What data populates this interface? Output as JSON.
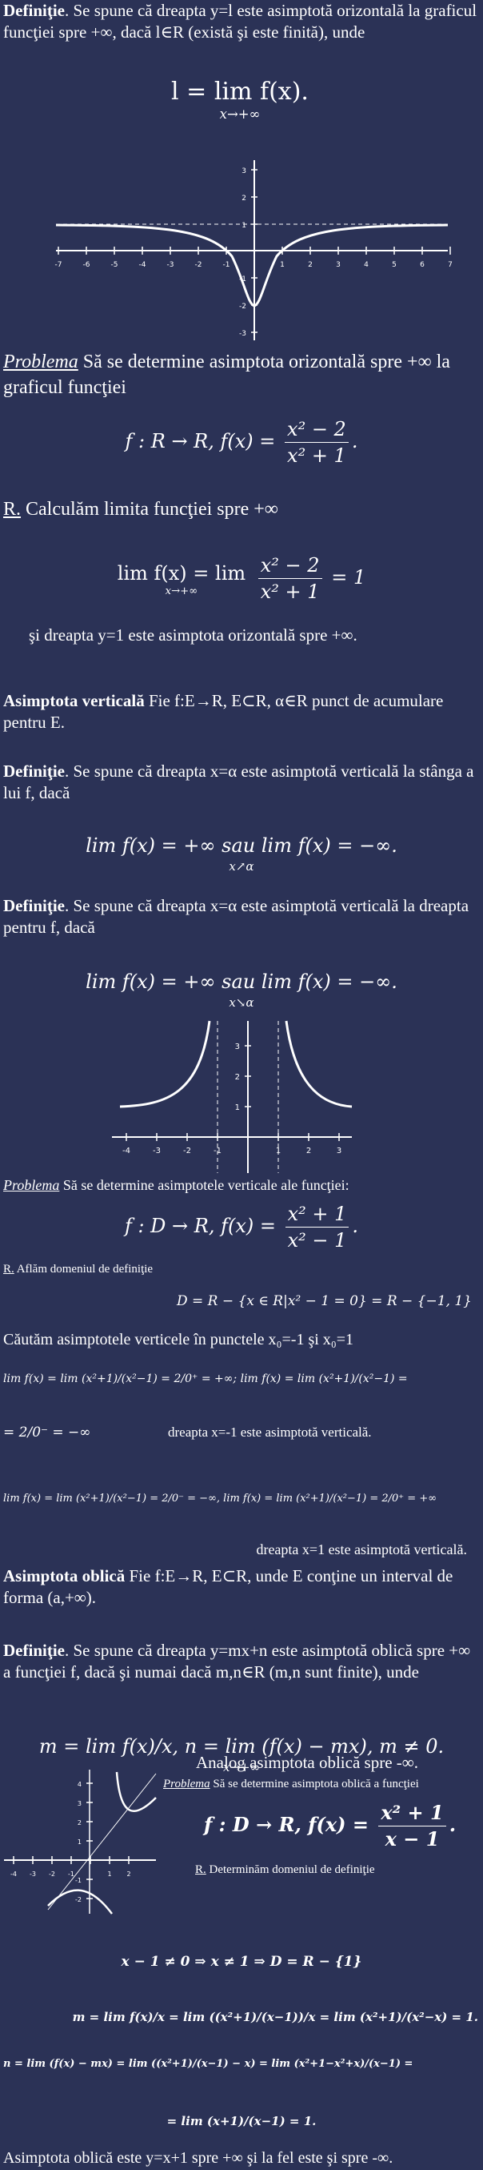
{
  "def1": {
    "label": "Definiţie",
    "text": ". Se spune că dreapta y=l este asimptotă orizontală la graficul funcţiei spre +∞, dacă l∈R (există şi este finită), unde",
    "formula": "l = lim f(x).",
    "formula_sub": "x→+∞"
  },
  "graph1": {
    "x_ticks": [
      "-7",
      "-6",
      "-5",
      "-4",
      "-3",
      "-2",
      "-1",
      "",
      "1",
      "2",
      "3",
      "4",
      "5",
      "6",
      "7"
    ],
    "y_ticks": [
      "3",
      "2",
      "1",
      "-1",
      "-2",
      "-3"
    ]
  },
  "prob1": {
    "label": "Problema",
    "text": " Să se determine asimptota orizontală spre +∞ la graficul funcţiei",
    "func": "f : R → R, f(x) =",
    "num": "x² − 2",
    "den": "x² + 1",
    "tail": "."
  },
  "sol1": {
    "label": "R.",
    "text": " Calculăm limita funcţiei spre +∞",
    "lim_sub": "x→+∞",
    "lim_text": "lim f(x) = lim",
    "num": "x² − 2",
    "den": "x² + 1",
    "result": "= 1",
    "concl": "şi dreapta y=1 este asimptota orizontală spre +∞."
  },
  "vert": {
    "label": "Asimptota verticală",
    "text": " Fie f:E→R, E⊂R, α∈R punct de acumulare pentru E."
  },
  "def2": {
    "label": "Definiţie",
    "text": ". Se spune că dreapta x=α este asimptotă verticală la stânga a lui f, dacă",
    "formula": "lim f(x) = +∞ sau lim f(x) = −∞.",
    "sub": "x↗α"
  },
  "def3": {
    "label": "Definiţie",
    "text": ". Se spune că dreapta x=α este asimptotă verticală la dreapta pentru f, dacă",
    "formula": "lim f(x) = +∞ sau lim f(x) = −∞.",
    "sub": "x↘α"
  },
  "graph2": {
    "x_ticks": [
      "-4",
      "-3",
      "-2",
      "-1",
      "",
      "1",
      "2",
      "3"
    ],
    "y_ticks": [
      "3",
      "2",
      "1"
    ]
  },
  "prob2": {
    "label": "Problema",
    "text": " Să se determine asimptotele verticale ale funcţiei:",
    "func": "f : D → R, f(x) =",
    "num": "x² + 1",
    "den": "x² − 1",
    "tail": "."
  },
  "sol2": {
    "label": "R.",
    "text": " Aflăm domeniul de definiţie",
    "domain": "D = R − {x ∈ R|x² − 1 = 0} = R − {−1, 1}",
    "search": "Căutăm asimptotele verticele în punctele x₀=-1 şi x₀=1",
    "l1": "lim f(x) = lim  (x²+1)/(x²−1) = 2/0⁺ = +∞;  lim f(x) = lim  (x²+1)/(x²−1) =",
    "l1b": "= 2/0⁻ = −∞",
    "concl1": "dreapta x=-1 este asimptotă verticală.",
    "l2": "lim f(x) = lim  (x²+1)/(x²−1) = 2/0⁻ = −∞,  lim f(x) = lim  (x²+1)/(x²−1) = 2/0⁺ = +∞",
    "concl2": "dreapta x=1 este asimptotă verticală."
  },
  "obl": {
    "label": "Asimptota oblică",
    "text": " Fie f:E→R, E⊂R, unde E conţine un interval de forma (a,+∞)."
  },
  "def4": {
    "label": "Definiţie",
    "text": ". Se spune că dreapta y=mx+n este asimptotă oblică spre +∞ a funcţiei f, dacă şi numai dacă m,n∈R (m,n sunt finite), unde",
    "m_formula": "m = lim f(x)/x,  n = lim (f(x) − mx),  m ≠ 0.",
    "sub": "x→+∞"
  },
  "analog": "Analog asimptota oblică spre -∞.",
  "graph3": {
    "x_ticks": [
      "-4",
      "-3",
      "-2",
      "-1",
      "",
      "1",
      "2"
    ],
    "y_ticks": [
      "4",
      "3",
      "2",
      "1",
      "-1",
      "-2"
    ]
  },
  "prob3": {
    "label": "Problema",
    "text": " Să se determine asimptota oblică a funcţiei",
    "func": "f : D → R, f(x) =",
    "num": "x² + 1",
    "den": "x − 1",
    "tail": "."
  },
  "sol3": {
    "label": "R.",
    "text": " Determinăm domeniul de definiţie",
    "domain": "x − 1 ≠ 0 ⇒ x ≠ 1 ⇒ D = R − {1}",
    "m_line": "m = lim f(x)/x = lim ((x²+1)/(x−1))/x = lim (x²+1)/(x²−x) = 1.",
    "n_line": "n = lim (f(x) − mx) = lim ((x²+1)/(x−1) − x) = lim (x²+1−x²+x)/(x−1) =",
    "n_line2": "= lim (x+1)/(x−1) = 1.",
    "final": "Asimptota oblică este y=x+1 spre +∞ şi la fel este şi spre -∞."
  }
}
